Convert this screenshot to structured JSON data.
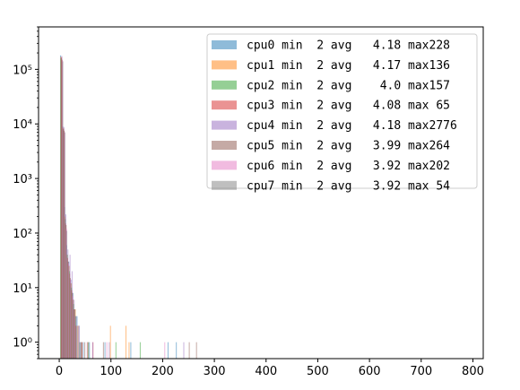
{
  "chart_data": {
    "type": "histogram",
    "title": "",
    "xlabel": "",
    "ylabel": "",
    "xlim": [
      -40,
      820
    ],
    "ylim": [
      0.5,
      600000
    ],
    "yscale": "log",
    "grid": false,
    "legend_placement": "top-right",
    "x_ticks": [
      0,
      100,
      200,
      300,
      400,
      500,
      600,
      700,
      800
    ],
    "y_ticks": [
      1,
      10,
      100,
      1000,
      10000,
      100000
    ],
    "y_tick_labels": [
      "10⁰",
      "10¹",
      "10²",
      "10³",
      "10⁴",
      "10⁵"
    ],
    "series": [
      {
        "name": "cpu0 min  2 avg   4.18 max228",
        "color": "#1f77b4",
        "bins": [
          [
            4,
            180000
          ],
          [
            8,
            9000
          ],
          [
            12,
            300
          ],
          [
            16,
            60
          ],
          [
            20,
            30
          ],
          [
            24,
            14
          ],
          [
            28,
            8
          ],
          [
            32,
            4
          ],
          [
            36,
            3
          ],
          [
            40,
            2
          ],
          [
            44,
            1
          ],
          [
            48,
            1
          ],
          [
            60,
            1
          ],
          [
            90,
            1
          ],
          [
            140,
            1
          ],
          [
            212,
            1
          ],
          [
            228,
            1
          ]
        ]
      },
      {
        "name": "cpu1 min  2 avg   4.17 max136",
        "color": "#ff7f0e",
        "bins": [
          [
            4,
            170000
          ],
          [
            8,
            8500
          ],
          [
            12,
            200
          ],
          [
            16,
            40
          ],
          [
            20,
            25
          ],
          [
            24,
            12
          ],
          [
            28,
            6
          ],
          [
            32,
            4
          ],
          [
            36,
            2
          ],
          [
            44,
            1
          ],
          [
            56,
            1
          ],
          [
            100,
            2
          ],
          [
            130,
            2
          ],
          [
            136,
            1
          ]
        ]
      },
      {
        "name": "cpu2 min  2 avg    4.0 max157",
        "color": "#2ca02c",
        "bins": [
          [
            4,
            160000
          ],
          [
            8,
            8000
          ],
          [
            12,
            180
          ],
          [
            16,
            40
          ],
          [
            20,
            20
          ],
          [
            24,
            10
          ],
          [
            28,
            5
          ],
          [
            32,
            3
          ],
          [
            40,
            1
          ],
          [
            56,
            1
          ],
          [
            110,
            1
          ],
          [
            157,
            1
          ]
        ]
      },
      {
        "name": "cpu3 min  2 avg   4.08 max 65",
        "color": "#d62728",
        "bins": [
          [
            4,
            165000
          ],
          [
            8,
            8200
          ],
          [
            12,
            150
          ],
          [
            16,
            35
          ],
          [
            20,
            18
          ],
          [
            24,
            9
          ],
          [
            28,
            4
          ],
          [
            32,
            2
          ],
          [
            44,
            1
          ],
          [
            65,
            1
          ]
        ]
      },
      {
        "name": "cpu4 min  2 avg   4.18 max2776",
        "color": "#9467bd",
        "bins": [
          [
            4,
            175000
          ],
          [
            8,
            8800
          ],
          [
            12,
            220
          ],
          [
            16,
            50
          ],
          [
            20,
            40
          ],
          [
            24,
            20
          ],
          [
            28,
            6
          ],
          [
            32,
            3
          ],
          [
            40,
            1
          ],
          [
            64,
            1
          ],
          [
            96,
            1
          ],
          [
            240,
            1
          ]
        ]
      },
      {
        "name": "cpu5 min  2 avg   3.99 max264",
        "color": "#8c564b",
        "bins": [
          [
            4,
            150000
          ],
          [
            8,
            7500
          ],
          [
            12,
            140
          ],
          [
            16,
            30
          ],
          [
            20,
            15
          ],
          [
            24,
            8
          ],
          [
            28,
            4
          ],
          [
            36,
            2
          ],
          [
            48,
            1
          ],
          [
            84,
            1
          ],
          [
            250,
            1
          ],
          [
            264,
            1
          ]
        ]
      },
      {
        "name": "cpu6 min  2 avg   3.92 max202",
        "color": "#e377c2",
        "bins": [
          [
            4,
            145000
          ],
          [
            8,
            7000
          ],
          [
            12,
            120
          ],
          [
            16,
            28
          ],
          [
            20,
            14
          ],
          [
            24,
            7
          ],
          [
            28,
            3
          ],
          [
            36,
            2
          ],
          [
            52,
            1
          ],
          [
            90,
            1
          ],
          [
            202,
            1
          ]
        ]
      },
      {
        "name": "cpu7 min  2 avg   3.92 max 54",
        "color": "#7f7f7f",
        "bins": [
          [
            4,
            140000
          ],
          [
            8,
            7000
          ],
          [
            12,
            110
          ],
          [
            16,
            25
          ],
          [
            20,
            12
          ],
          [
            24,
            6
          ],
          [
            28,
            3
          ],
          [
            32,
            2
          ],
          [
            40,
            1
          ],
          [
            54,
            1
          ]
        ]
      }
    ]
  }
}
